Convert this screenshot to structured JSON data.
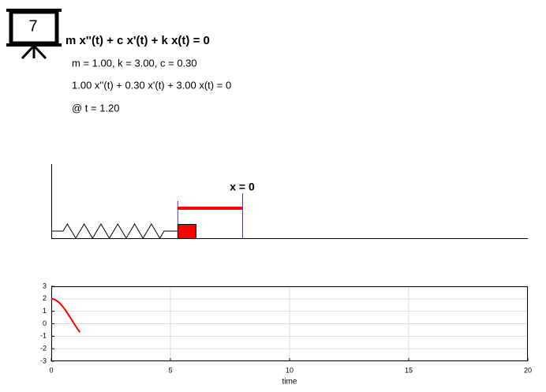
{
  "header": {
    "icon_label": "7",
    "title": "m x''(t) + c x'(t) + k x(t) = 0",
    "lines": [
      "m = 1.00, k = 3.00, c = 0.30",
      "1.00 x''(t) + 0.30 x'(t) + 3.00 x(t) = 0",
      "@ t = 1.20"
    ]
  },
  "diagram": {
    "label": "x = 0"
  },
  "chart_data": {
    "type": "line",
    "xlabel": "time",
    "x": [
      0,
      0.1,
      0.2,
      0.3,
      0.4,
      0.5,
      0.6,
      0.7,
      0.8,
      0.9,
      1.0,
      1.1,
      1.2
    ],
    "series": [
      {
        "color": "#ff0000",
        "values": [
          2,
          1.97,
          1.883,
          1.744,
          1.557,
          1.329,
          1.07,
          0.786,
          0.487,
          0.183,
          -0.118,
          -0.406,
          -0.673
        ]
      }
    ],
    "xlim": [
      0,
      20
    ],
    "xticks": [
      0,
      5,
      10,
      15,
      20
    ],
    "ylim": [
      -3,
      3
    ],
    "yticks": [
      -3,
      -2,
      -1,
      0,
      1,
      2,
      3
    ],
    "grid": true
  }
}
